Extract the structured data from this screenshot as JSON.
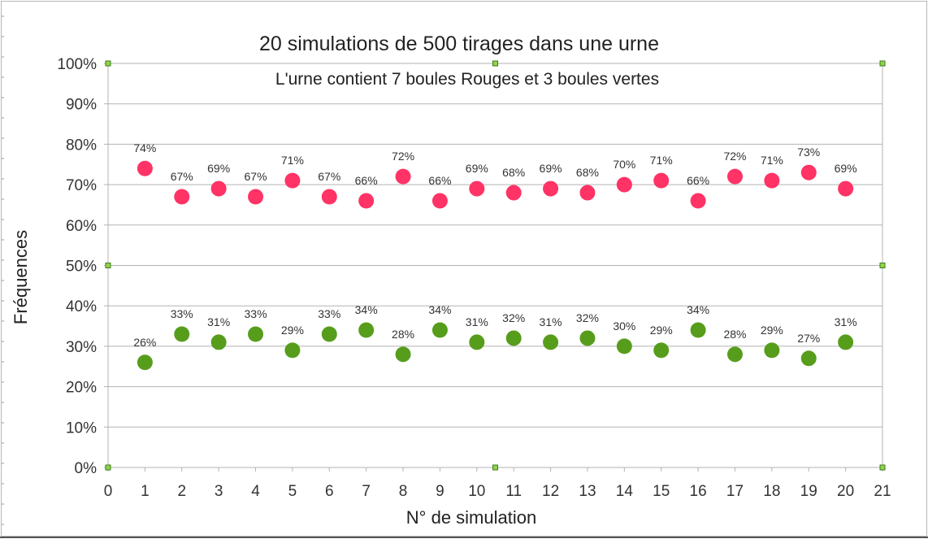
{
  "chart_data": {
    "type": "scatter",
    "title": "20 simulations de 500 tirages dans une urne",
    "subtitle": "L'urne contient 7 boules Rouges et 3 boules vertes",
    "xlabel": "N° de simulation",
    "ylabel": "Fréquences",
    "xlim": [
      0,
      21
    ],
    "ylim": [
      0,
      100
    ],
    "x_ticks": [
      "0",
      "1",
      "2",
      "3",
      "4",
      "5",
      "6",
      "7",
      "8",
      "9",
      "10",
      "11",
      "12",
      "13",
      "14",
      "15",
      "16",
      "17",
      "18",
      "19",
      "20",
      "21"
    ],
    "y_ticks": [
      "0%",
      "10%",
      "20%",
      "30%",
      "40%",
      "50%",
      "60%",
      "70%",
      "80%",
      "90%",
      "100%"
    ],
    "grid": true,
    "x": [
      1,
      2,
      3,
      4,
      5,
      6,
      7,
      8,
      9,
      10,
      11,
      12,
      13,
      14,
      15,
      16,
      17,
      18,
      19,
      20
    ],
    "series": [
      {
        "color": "#ff3366",
        "values": [
          74,
          67,
          69,
          67,
          71,
          67,
          66,
          72,
          66,
          69,
          68,
          69,
          68,
          70,
          71,
          66,
          72,
          71,
          73,
          69
        ],
        "labels": [
          "74%",
          "67%",
          "69%",
          "67%",
          "71%",
          "67%",
          "66%",
          "72%",
          "66%",
          "69%",
          "68%",
          "69%",
          "68%",
          "70%",
          "71%",
          "66%",
          "72%",
          "71%",
          "73%",
          "69%"
        ]
      },
      {
        "color": "#579d1c",
        "values": [
          26,
          33,
          31,
          33,
          29,
          33,
          34,
          28,
          34,
          31,
          32,
          31,
          32,
          30,
          29,
          34,
          28,
          29,
          27,
          31
        ],
        "labels": [
          "26%",
          "33%",
          "31%",
          "33%",
          "29%",
          "33%",
          "34%",
          "28%",
          "34%",
          "31%",
          "32%",
          "31%",
          "32%",
          "30%",
          "29%",
          "34%",
          "28%",
          "29%",
          "27%",
          "31%"
        ]
      }
    ]
  }
}
